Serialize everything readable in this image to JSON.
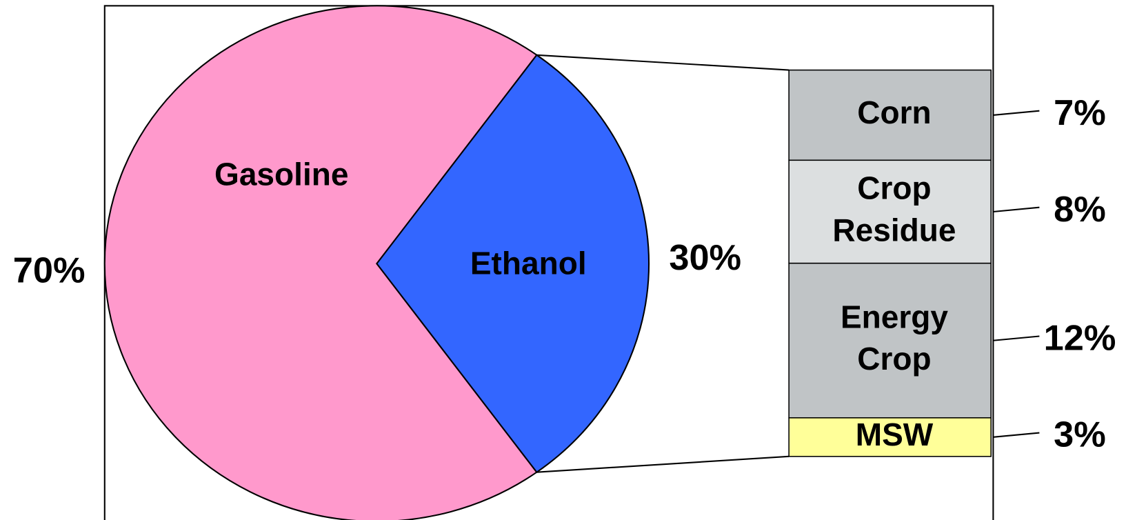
{
  "chart_data": {
    "type": "pie",
    "categories": [
      "Gasoline",
      "Ethanol"
    ],
    "values": [
      70,
      30
    ],
    "value_labels": [
      "70%",
      "30%"
    ],
    "colors": [
      "#ff99cc",
      "#3366ff"
    ],
    "breakdown": {
      "categories": [
        "Corn",
        "Crop Residue",
        "Energy Crop",
        "MSW"
      ],
      "values": [
        7,
        8,
        12,
        3
      ],
      "value_labels": [
        "7%",
        "8%",
        "12%",
        "3%"
      ],
      "colors": [
        "#c0c4c6",
        "#dcdfe0",
        "#c0c4c6",
        "#ffff99"
      ]
    }
  }
}
